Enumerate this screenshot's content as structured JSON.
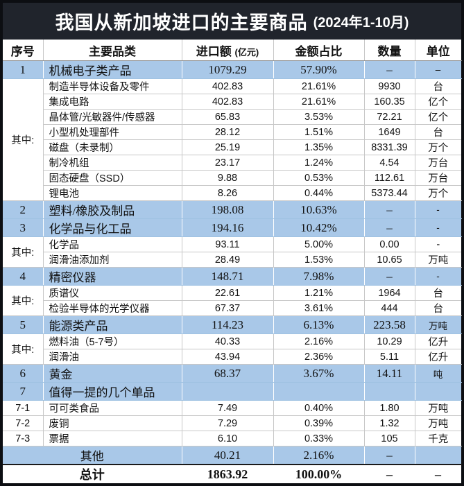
{
  "title": {
    "main": "我国从新加坡进口的主要商品",
    "period": "(2024年1-10月)"
  },
  "colors": {
    "titlebar_bg": "#20242c",
    "category_row_blue": "#a9c8e8",
    "border_dark": "#0c0e12",
    "grid_gray": "#c7c7c7"
  },
  "table": {
    "headers": {
      "no": "序号",
      "category": "主要品类",
      "amount": "进口额",
      "amount_unit": "(亿元)",
      "share": "金额占比",
      "qty": "数量",
      "unit": "单位"
    }
  },
  "chart_data": {
    "type": "table",
    "title": "我国从新加坡进口的主要商品",
    "subtitle": "(2024年1-10月)",
    "columns": [
      "序号",
      "主要品类",
      "进口额(亿元)",
      "金额占比",
      "数量",
      "单位"
    ],
    "rows": [
      {
        "type": "category",
        "no": "1",
        "name": "机械电子类产品",
        "amount": "1079.29",
        "share": "57.90%",
        "qty": "–",
        "unit": "–"
      },
      {
        "type": "sub",
        "group_label": "其中:",
        "group_span": 8,
        "name": "制造半导体设备及零件",
        "amount": "402.83",
        "share": "21.61%",
        "qty": "9930",
        "unit": "台"
      },
      {
        "type": "sub",
        "in_group": true,
        "name": "集成电路",
        "amount": "402.83",
        "share": "21.61%",
        "qty": "160.35",
        "unit": "亿个"
      },
      {
        "type": "sub",
        "in_group": true,
        "name": "晶体管/光敏器件/传感器",
        "amount": "65.83",
        "share": "3.53%",
        "qty": "72.21",
        "unit": "亿个"
      },
      {
        "type": "sub",
        "in_group": true,
        "name": "小型机处理部件",
        "amount": "28.12",
        "share": "1.51%",
        "qty": "1649",
        "unit": "台"
      },
      {
        "type": "sub",
        "in_group": true,
        "name": "磁盘（未录制）",
        "amount": "25.19",
        "share": "1.35%",
        "qty": "8331.39",
        "unit": "万个"
      },
      {
        "type": "sub",
        "in_group": true,
        "name": "制冷机组",
        "amount": "23.17",
        "share": "1.24%",
        "qty": "4.54",
        "unit": "万台"
      },
      {
        "type": "sub",
        "in_group": true,
        "name": "固态硬盘（SSD）",
        "amount": "9.88",
        "share": "0.53%",
        "qty": "112.61",
        "unit": "万台"
      },
      {
        "type": "sub",
        "in_group": true,
        "name": "锂电池",
        "amount": "8.26",
        "share": "0.44%",
        "qty": "5373.44",
        "unit": "万个"
      },
      {
        "type": "category",
        "no": "2",
        "name": "塑料/橡胶及制品",
        "amount": "198.08",
        "share": "10.63%",
        "qty": "–",
        "unit": "-"
      },
      {
        "type": "category",
        "no": "3",
        "name": "化学品与化工品",
        "amount": "194.16",
        "share": "10.42%",
        "qty": "–",
        "unit": "-"
      },
      {
        "type": "sub",
        "group_label": "其中:",
        "group_span": 2,
        "name": "化学品",
        "amount": "93.11",
        "share": "5.00%",
        "qty": "0.00",
        "unit": "-"
      },
      {
        "type": "sub",
        "in_group": true,
        "name": "润滑油添加剂",
        "amount": "28.49",
        "share": "1.53%",
        "qty": "10.65",
        "unit": "万吨"
      },
      {
        "type": "category",
        "no": "4",
        "name": "精密仪器",
        "amount": "148.71",
        "share": "7.98%",
        "qty": "–",
        "unit": "-"
      },
      {
        "type": "sub",
        "group_label": "其中:",
        "group_span": 2,
        "name": "质谱仪",
        "amount": "22.61",
        "share": "1.21%",
        "qty": "1964",
        "unit": "台"
      },
      {
        "type": "sub",
        "in_group": true,
        "name": "检验半导体的光学仪器",
        "amount": "67.37",
        "share": "3.61%",
        "qty": "444",
        "unit": "台"
      },
      {
        "type": "category",
        "no": "5",
        "name": "能源类产品",
        "amount": "114.23",
        "share": "6.13%",
        "qty": "223.58",
        "unit": "万吨"
      },
      {
        "type": "sub",
        "group_label": "其中:",
        "group_span": 2,
        "name": "燃料油（5-7号）",
        "amount": "40.33",
        "share": "2.16%",
        "qty": "10.29",
        "unit": "亿升"
      },
      {
        "type": "sub",
        "in_group": true,
        "name": "润滑油",
        "amount": "43.94",
        "share": "2.36%",
        "qty": "5.11",
        "unit": "亿升"
      },
      {
        "type": "category",
        "no": "6",
        "name": "黄金",
        "amount": "68.37",
        "share": "3.67%",
        "qty": "14.11",
        "unit": "吨"
      },
      {
        "type": "category",
        "no": "7",
        "name": "值得一提的几个单品",
        "amount": "",
        "share": "",
        "qty": "",
        "unit": ""
      },
      {
        "type": "sub2",
        "no": "7-1",
        "name": "可可类食品",
        "amount": "7.49",
        "share": "0.40%",
        "qty": "1.80",
        "unit": "万吨"
      },
      {
        "type": "sub2",
        "no": "7-2",
        "name": "废铜",
        "amount": "7.29",
        "share": "0.39%",
        "qty": "1.32",
        "unit": "万吨"
      },
      {
        "type": "sub2",
        "no": "7-3",
        "name": "票据",
        "amount": "6.10",
        "share": "0.33%",
        "qty": "105",
        "unit": "千克"
      },
      {
        "type": "other",
        "name": "其他",
        "amount": "40.21",
        "share": "2.16%",
        "qty": "–",
        "unit": ""
      },
      {
        "type": "total",
        "name": "总计",
        "amount": "1863.92",
        "share": "100.00%",
        "qty": "–",
        "unit": "–"
      }
    ]
  }
}
